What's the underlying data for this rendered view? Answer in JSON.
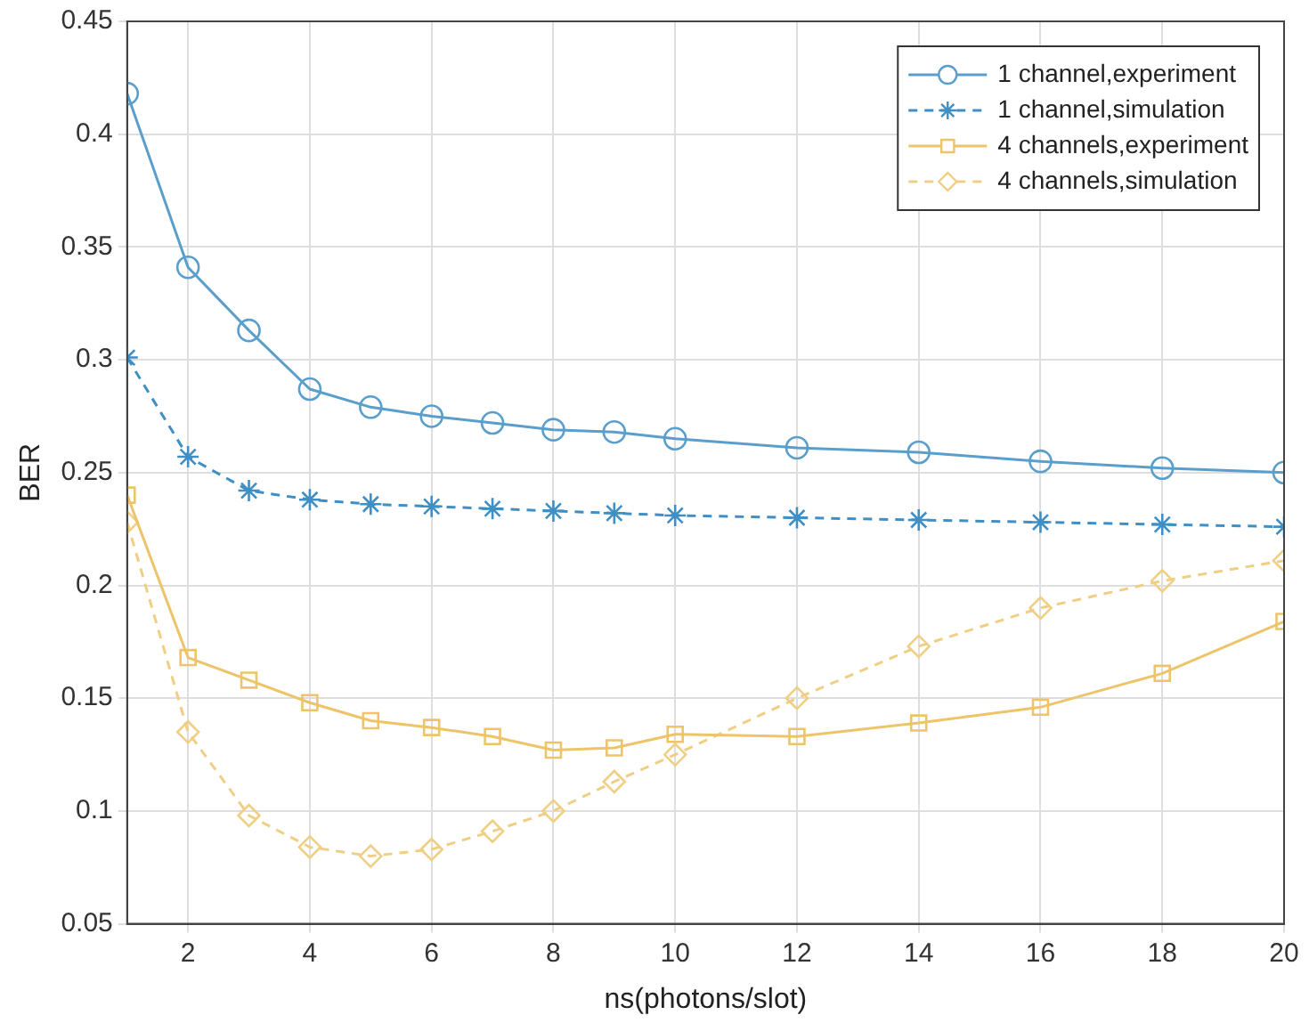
{
  "chart_data": {
    "type": "line",
    "xlabel": "ns(photons/slot)",
    "ylabel": "BER",
    "x": [
      1,
      2,
      3,
      4,
      5,
      6,
      7,
      8,
      9,
      10,
      12,
      14,
      16,
      18,
      20
    ],
    "xlim": [
      1,
      20
    ],
    "xticks": [
      2,
      4,
      6,
      8,
      10,
      12,
      14,
      16,
      18,
      20
    ],
    "ylim": [
      0.05,
      0.45
    ],
    "yticks": [
      0.05,
      0.1,
      0.15,
      0.2,
      0.25,
      0.3,
      0.35,
      0.4,
      0.45
    ],
    "grid": true,
    "legend": "top right",
    "series": [
      {
        "name": "1 channel,experiment",
        "color": "#5a9fcc",
        "marker": "circle",
        "line_style": "solid",
        "values": [
          0.418,
          0.341,
          0.313,
          0.287,
          0.279,
          0.275,
          0.272,
          0.269,
          0.268,
          0.265,
          0.261,
          0.259,
          0.255,
          0.252,
          0.25
        ]
      },
      {
        "name": "1 channel,simulation",
        "color": "#3f8fc4",
        "marker": "cross",
        "line_style": "dashed",
        "values": [
          0.301,
          0.257,
          0.242,
          0.238,
          0.236,
          0.235,
          0.234,
          0.233,
          0.232,
          0.231,
          0.23,
          0.229,
          0.228,
          0.227,
          0.226
        ]
      },
      {
        "name": "4 channels,experiment",
        "color": "#edc46a",
        "marker": "square",
        "line_style": "solid",
        "values": [
          0.24,
          0.168,
          0.158,
          0.148,
          0.14,
          0.137,
          0.133,
          0.127,
          0.128,
          0.134,
          0.133,
          0.139,
          0.146,
          0.161,
          0.184
        ]
      },
      {
        "name": "4 channels,simulation",
        "color": "#f0cf85",
        "marker": "diamond",
        "line_style": "dashed",
        "values": [
          0.228,
          0.135,
          0.098,
          0.084,
          0.08,
          0.083,
          0.091,
          0.1,
          0.113,
          0.125,
          0.15,
          0.173,
          0.19,
          0.202,
          0.211
        ]
      }
    ]
  }
}
